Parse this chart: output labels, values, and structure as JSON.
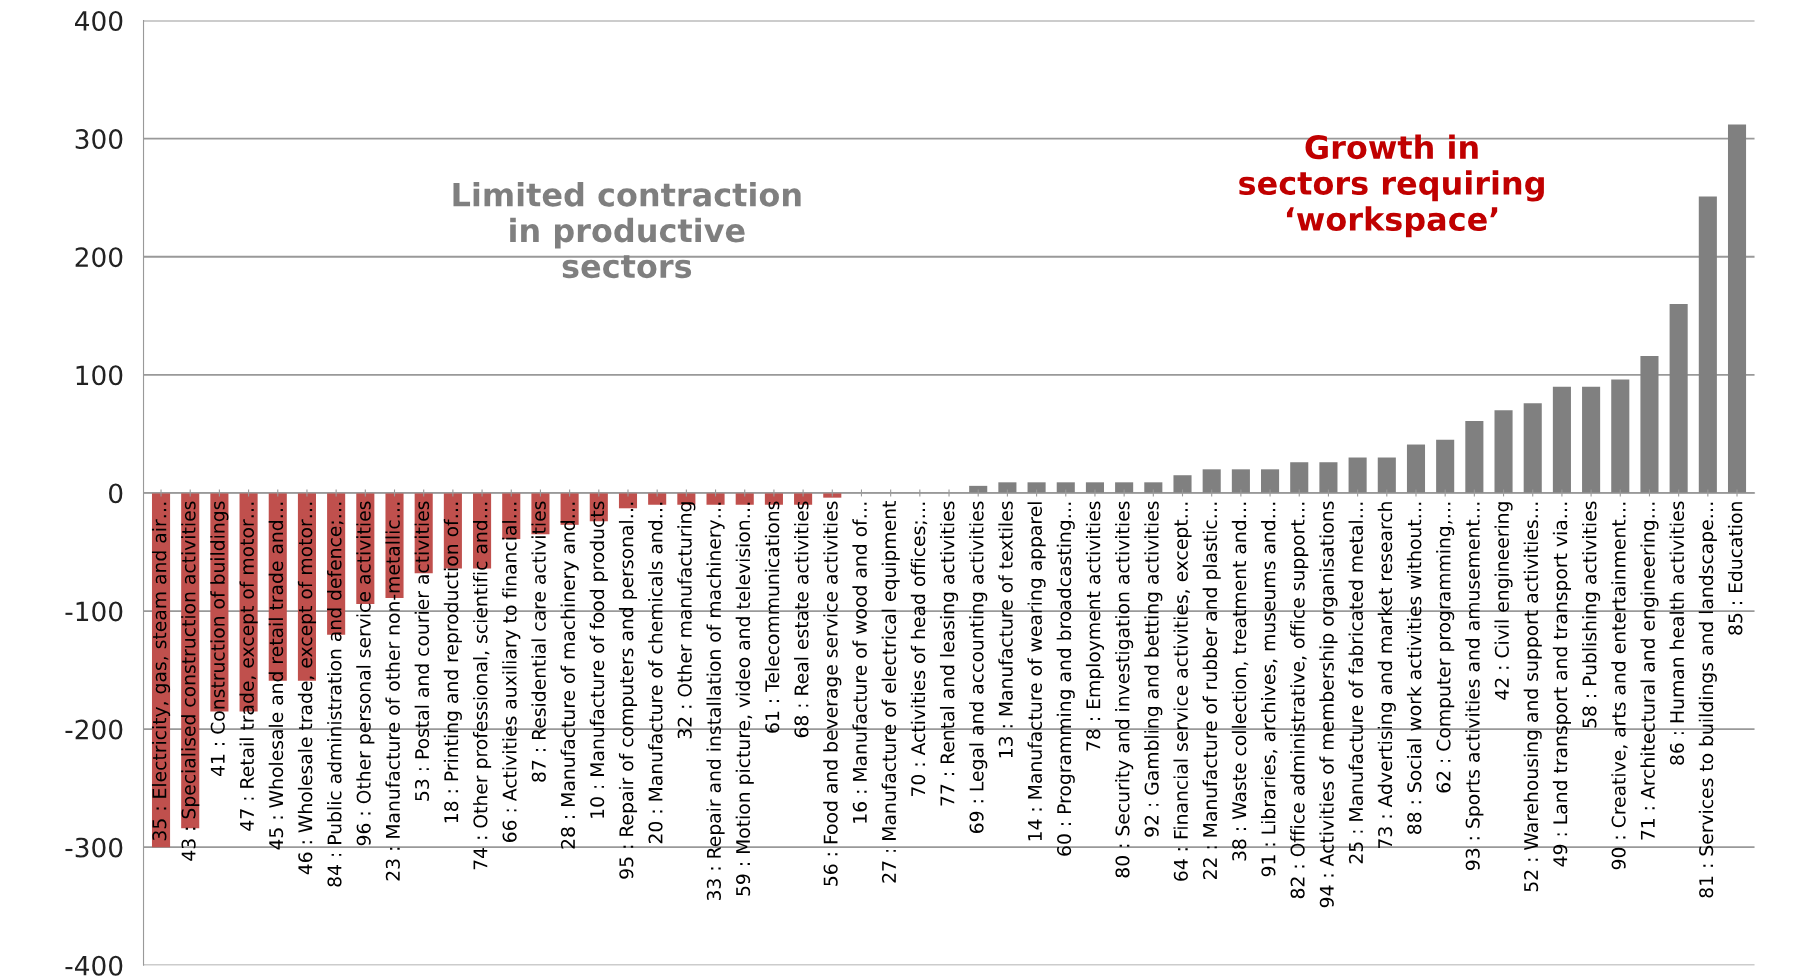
{
  "chart_data": {
    "type": "bar",
    "categories": [
      "35 : Electricity, gas, steam and air…",
      "43 : Specialised construction activities",
      "41 : Construction of buildings",
      "47 : Retail trade, except of motor…",
      "45 : Wholesale and retail trade and…",
      "46 : Wholesale trade, except of motor…",
      "84 : Public administration and defence;…",
      "96 : Other personal service activities",
      "23 : Manufacture of other non-metallic…",
      "53 : Postal and courier activities",
      "18 : Printing and reproduction of…",
      "74 : Other professional, scientific and…",
      "66 : Activities auxiliary to financial…",
      "87 : Residential care activities",
      "28 : Manufacture of machinery and…",
      "10 : Manufacture of food products",
      "95 : Repair of computers and personal…",
      "20 : Manufacture of chemicals and…",
      "32 : Other manufacturing",
      "33 : Repair and installation of machinery…",
      "59 : Motion picture, video and television…",
      "61 : Telecommunications",
      "68 : Real estate activities",
      "56 : Food and beverage service activities",
      "16 : Manufacture of wood and of…",
      "27 : Manufacture of electrical equipment",
      "70 : Activities of head offices;…",
      "77 : Rental and leasing activities",
      "69 : Legal and accounting activities",
      "13 : Manufacture of textiles",
      "14 : Manufacture of wearing apparel",
      "60 : Programming and broadcasting…",
      "78 : Employment activities",
      "80 : Security and investigation activities",
      "92 : Gambling and betting activities",
      "64 : Financial service activities, except…",
      "22 : Manufacture of rubber and plastic…",
      "38 : Waste collection, treatment and…",
      "91 : Libraries, archives, museums and…",
      "82 : Office administrative, office support…",
      "94 : Activities of membership organisations",
      "25 : Manufacture of fabricated metal…",
      "73 : Advertising and market research",
      "88 : Social work activities without…",
      "62 : Computer programming,…",
      "93 : Sports activities and amusement…",
      "42 : Civil engineering",
      "52 : Warehousing and support activities…",
      "49 : Land transport and transport via…",
      "58 : Publishing activities",
      "90 : Creative, arts and entertainment…",
      "71 : Architectural and engineering…",
      "86 : Human health activities",
      "81 : Services to buildings and landscape…",
      "85 : Education"
    ],
    "values": [
      -300,
      -284,
      -185,
      -185,
      -159,
      -159,
      -120,
      -94,
      -89,
      -68,
      -64,
      -64,
      -39,
      -35,
      -27,
      -24,
      -13,
      -10,
      -10,
      -10,
      -10,
      -10,
      -10,
      -4,
      0,
      0,
      0,
      0,
      6,
      9,
      9,
      9,
      9,
      9,
      9,
      15,
      20,
      20,
      20,
      26,
      26,
      30,
      30,
      41,
      45,
      61,
      70,
      76,
      90,
      90,
      96,
      116,
      160,
      251,
      312
    ],
    "colors": [
      "#c0504d",
      "#c0504d",
      "#c0504d",
      "#c0504d",
      "#c0504d",
      "#c0504d",
      "#c0504d",
      "#c0504d",
      "#c0504d",
      "#c0504d",
      "#c0504d",
      "#c0504d",
      "#c0504d",
      "#c0504d",
      "#c0504d",
      "#c0504d",
      "#c0504d",
      "#c0504d",
      "#c0504d",
      "#c0504d",
      "#c0504d",
      "#c0504d",
      "#c0504d",
      "#c0504d",
      "#c0504d",
      "#808080",
      "#808080",
      "#808080",
      "#808080",
      "#808080",
      "#808080",
      "#808080",
      "#808080",
      "#808080",
      "#808080",
      "#808080",
      "#808080",
      "#808080",
      "#808080",
      "#808080",
      "#808080",
      "#808080",
      "#808080",
      "#808080",
      "#808080",
      "#808080",
      "#808080",
      "#808080",
      "#808080",
      "#808080",
      "#808080",
      "#808080",
      "#808080",
      "#808080",
      "#808080"
    ],
    "ylim": [
      -400,
      400
    ],
    "yticks": [
      -400,
      -300,
      -200,
      -100,
      0,
      100,
      200,
      300,
      400
    ],
    "grid": "y",
    "annotations": [
      "Limited contraction\nin productive\nsectors",
      "Growth in\nsectors requiring\n‘workspace’"
    ]
  }
}
